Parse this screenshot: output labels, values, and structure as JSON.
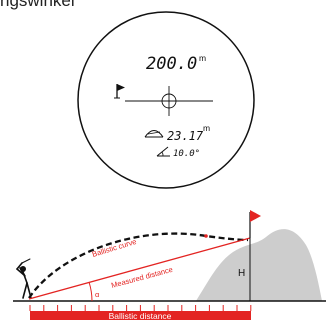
{
  "header": {
    "partial_title": "ngswinkel"
  },
  "display": {
    "distance_value": "200.0",
    "distance_unit": "m",
    "ballistic_value": "23.17",
    "ballistic_unit": "m",
    "angle_value": "10.0°",
    "icons": [
      "flag-icon",
      "crosshair-icon",
      "ballistic-arc-icon",
      "angle-icon"
    ]
  },
  "diagram": {
    "labels": {
      "ballistic_curve": "Ballistic curve",
      "measured_distance": "Measured distance",
      "alpha": "α",
      "height": "H",
      "ballistic_distance": "Ballistic distance"
    },
    "icons": [
      "golfer-icon",
      "target-flag-icon",
      "hill-shape"
    ],
    "colors": {
      "accent": "#e32422",
      "hill": "#cdcdcd",
      "ink": "#111111"
    }
  }
}
